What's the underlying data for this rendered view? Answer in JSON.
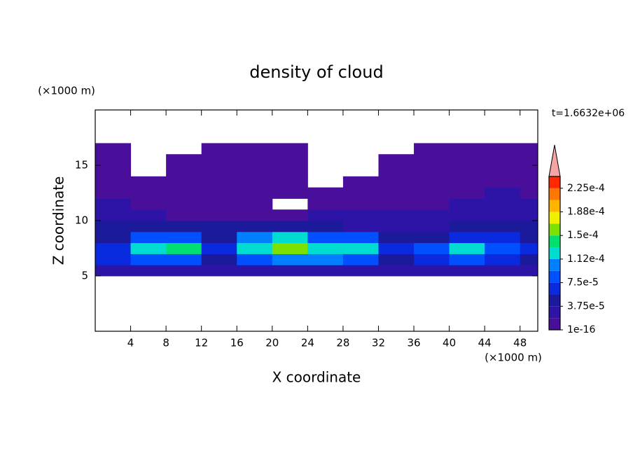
{
  "chart_data": {
    "type": "contour",
    "title": "density of cloud",
    "x_label": "X coordinate",
    "y_label": "Z coordinate",
    "x_unit": "(×1000 m)",
    "y_unit": "(×1000 m)",
    "time_label": "t=1.6632e+06",
    "xlim": [
      0,
      50
    ],
    "ylim": [
      0,
      20
    ],
    "xticks": [
      4,
      8,
      12,
      16,
      20,
      24,
      28,
      32,
      36,
      40,
      44,
      48
    ],
    "yticks": [
      5,
      10,
      15
    ],
    "x": [
      2,
      6,
      10,
      14,
      18,
      22,
      26,
      30,
      34,
      38,
      42,
      46,
      50
    ],
    "y": [
      5.5,
      6.5,
      7.5,
      8.5,
      9.5,
      10.5,
      11.5,
      12.5,
      13.5,
      14.5,
      15.5,
      16.5
    ],
    "z": [
      [
        3e-05,
        3e-05,
        3e-05,
        3e-05,
        3e-05,
        3e-05,
        3e-05,
        3e-05,
        3e-05,
        3e-05,
        3e-05,
        3e-05,
        3e-05
      ],
      [
        6e-05,
        8e-05,
        8e-05,
        5e-05,
        9e-05,
        0.0001,
        0.0001,
        9e-05,
        5e-05,
        6e-05,
        8e-05,
        6e-05,
        5e-05
      ],
      [
        7e-05,
        0.00013,
        0.00014,
        6e-05,
        0.00012,
        0.00015,
        0.00013,
        0.00012,
        6e-05,
        8e-05,
        0.00012,
        9e-05,
        7e-05
      ],
      [
        5e-05,
        8e-05,
        8e-05,
        5e-05,
        0.0001,
        0.00012,
        9e-05,
        8e-05,
        4e-05,
        5e-05,
        6e-05,
        6e-05,
        5e-05
      ],
      [
        4e-05,
        5e-05,
        4e-05,
        4e-05,
        4e-05,
        4e-05,
        4e-05,
        3e-05,
        3e-05,
        3e-05,
        4e-05,
        5e-05,
        4e-05
      ],
      [
        3e-05,
        2e-05,
        1.5e-05,
        1e-05,
        1e-05,
        1e-05,
        2e-05,
        2e-05,
        2e-05,
        2e-05,
        2.5e-05,
        3e-05,
        3e-05
      ],
      [
        2e-05,
        1.5e-05,
        1e-05,
        8e-06,
        5e-06,
        null,
        5e-06,
        1e-05,
        1.5e-05,
        1.5e-05,
        2e-05,
        2e-05,
        2e-05
      ],
      [
        1.5e-05,
        1e-05,
        1e-05,
        5e-06,
        5e-06,
        5e-06,
        5e-06,
        1e-05,
        1e-05,
        1e-05,
        1.5e-05,
        2e-05,
        1.5e-05
      ],
      [
        1e-05,
        5e-06,
        5e-06,
        5e-06,
        5e-06,
        5e-06,
        null,
        5e-06,
        5e-06,
        8e-06,
        1e-05,
        1e-05,
        1e-05
      ],
      [
        5e-06,
        null,
        5e-06,
        5e-06,
        5e-06,
        5e-06,
        null,
        null,
        5e-06,
        5e-06,
        5e-06,
        5e-06,
        5e-06
      ],
      [
        5e-06,
        null,
        5e-06,
        5e-06,
        5e-06,
        5e-06,
        null,
        null,
        5e-06,
        5e-06,
        5e-06,
        5e-06,
        5e-06
      ],
      [
        5e-06,
        null,
        null,
        5e-06,
        5e-06,
        5e-06,
        null,
        null,
        null,
        5e-06,
        5e-06,
        5e-06,
        5e-06
      ]
    ],
    "levels": [
      1e-16,
      1.875e-05,
      3.75e-05,
      5.625e-05,
      7.5e-05,
      9.375e-05,
      0.0001125,
      0.00013125,
      0.00015,
      0.00016875,
      0.0001875,
      0.00020625,
      0.000225,
      0.00024375
    ],
    "level_colors": [
      "#4a0f9a",
      "#2e14a6",
      "#1a1a9a",
      "#0a2ae0",
      "#0050ff",
      "#0080ff",
      "#00dcd0",
      "#00e070",
      "#7ee000",
      "#f0f000",
      "#ffb400",
      "#ff7800",
      "#ff2800"
    ],
    "overflow_color": "#f4a4a4",
    "colorbar_ticks": [
      {
        "value": 1e-16,
        "label": "1e-16"
      },
      {
        "value": 3.75e-05,
        "label": "3.75e-5"
      },
      {
        "value": 7.5e-05,
        "label": "7.5e-5"
      },
      {
        "value": 0.0001125,
        "label": "1.12e-4"
      },
      {
        "value": 0.00015,
        "label": "1.5e-4"
      },
      {
        "value": 0.0001875,
        "label": "1.88e-4"
      },
      {
        "value": 0.000225,
        "label": "2.25e-4"
      }
    ]
  }
}
